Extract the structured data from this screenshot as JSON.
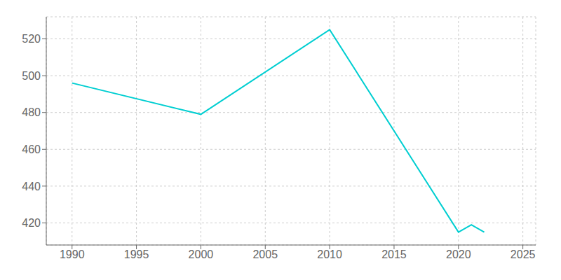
{
  "chart_data": {
    "type": "line",
    "x": [
      1990,
      2000,
      2010,
      2020,
      2021,
      2022
    ],
    "values": [
      496,
      479,
      525,
      415,
      419,
      415
    ],
    "color": "#00CED1",
    "xlim": [
      1988,
      2026
    ],
    "ylim": [
      408,
      532
    ],
    "xticks": [
      1990,
      1995,
      2000,
      2005,
      2010,
      2015,
      2020,
      2025
    ],
    "yticks": [
      420,
      440,
      460,
      480,
      500,
      520
    ],
    "grid": true
  }
}
